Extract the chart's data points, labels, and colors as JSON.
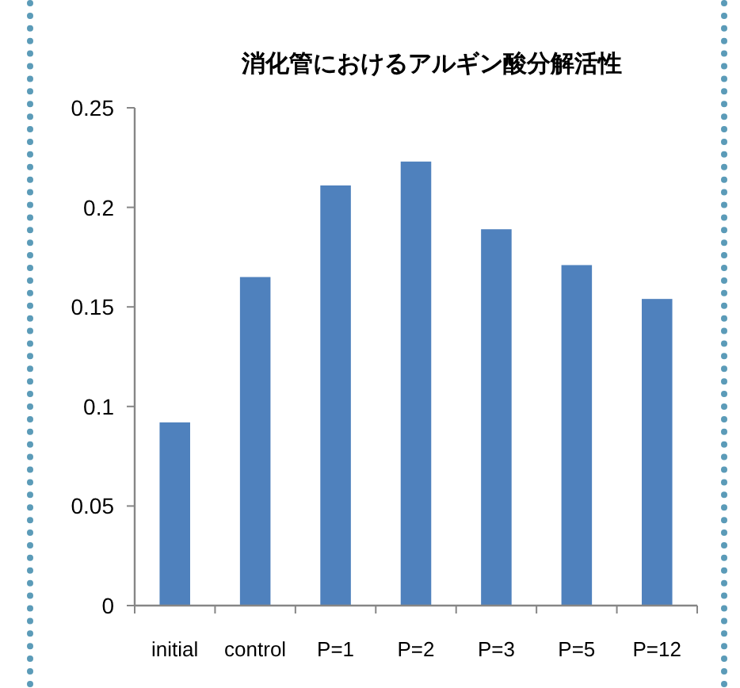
{
  "chart_data": {
    "type": "bar",
    "title": "消化管におけるアルギン酸分解活性",
    "categories": [
      "initial",
      "control",
      "P=1",
      "P=2",
      "P=3",
      "P=5",
      "P=12"
    ],
    "values": [
      0.092,
      0.165,
      0.211,
      0.223,
      0.189,
      0.171,
      0.154
    ],
    "color": "#4f81bd",
    "ylim": [
      0,
      0.25
    ],
    "yticks": [
      0,
      0.05,
      0.1,
      0.15,
      0.2,
      0.25
    ],
    "grid": false
  }
}
